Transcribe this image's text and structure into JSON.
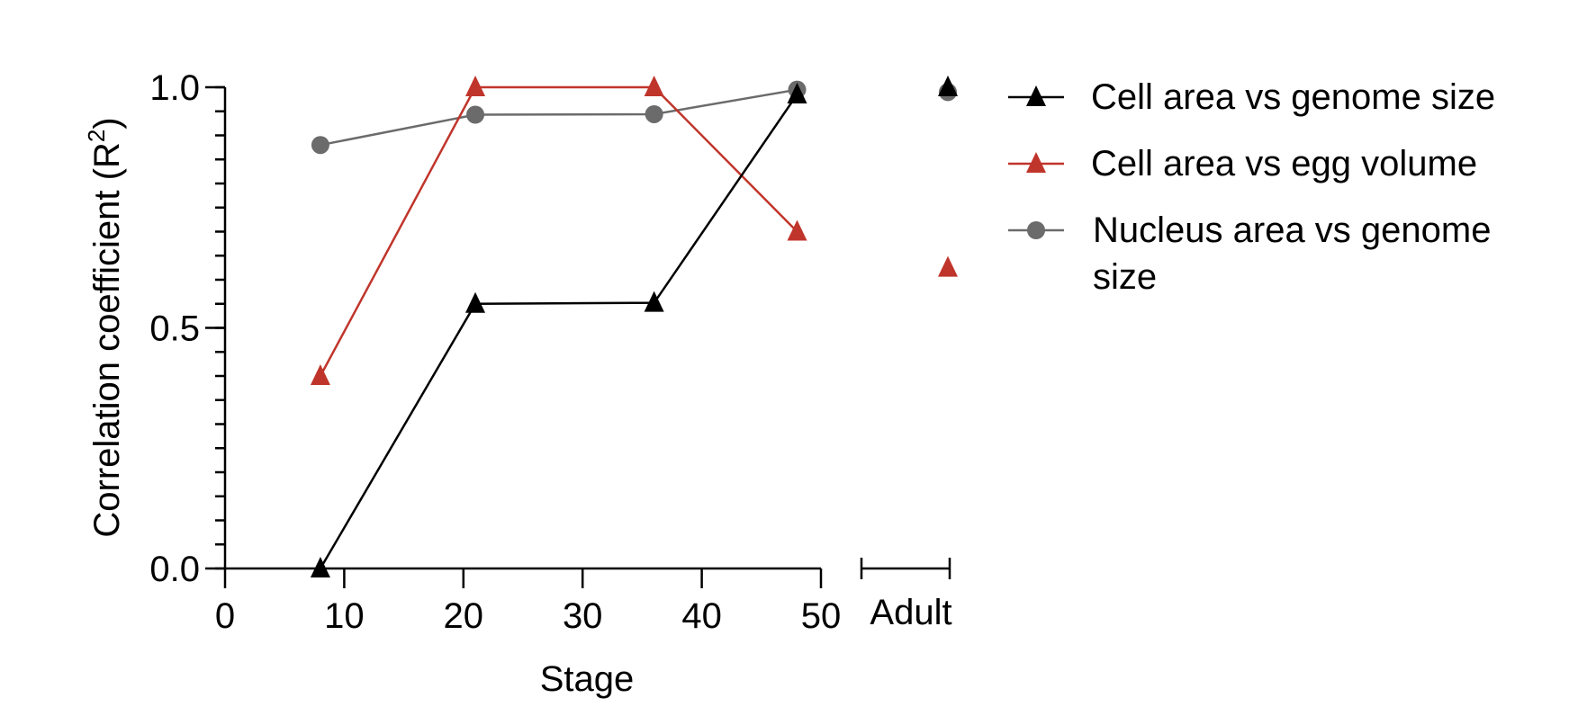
{
  "chart_data": {
    "type": "line",
    "xlabel": "Stage",
    "ylabel": "Correlation coefficient (R²)",
    "ylabel_main": "Correlation coefficient (R",
    "ylabel_sup": "2",
    "ylabel_close": ")",
    "xlim": [
      0,
      50
    ],
    "ylim": [
      0,
      1
    ],
    "x_ticks": [
      0,
      10,
      20,
      30,
      40,
      50
    ],
    "x_tick_labels": [
      "0",
      "10",
      "20",
      "30",
      "40",
      "50"
    ],
    "y_ticks": [
      0,
      0.5,
      1
    ],
    "y_tick_labels": [
      "0.0",
      "0.5",
      "1.0"
    ],
    "y_minor_step": 0.05,
    "adult_label": "Adult",
    "grid": false,
    "legend_position": "right",
    "series": [
      {
        "name": "Cell area vs genome size",
        "color": "#000000",
        "marker": "triangle",
        "x": [
          8,
          21,
          36,
          48
        ],
        "y": [
          0.0,
          0.55,
          0.552,
          0.985
        ],
        "adult": 1.0
      },
      {
        "name": "Cell area vs egg volume",
        "color": "#c0352b",
        "marker": "triangle",
        "x": [
          8,
          21,
          36,
          48
        ],
        "y": [
          0.4,
          1.0,
          1.0,
          0.7
        ],
        "adult": 0.625
      },
      {
        "name": "Nucleus area vs genome size",
        "name_lines": [
          "Nucleus area vs genome",
          "size"
        ],
        "color": "#6b6b6b",
        "marker": "circle",
        "x": [
          8,
          21,
          36,
          48
        ],
        "y": [
          0.88,
          0.943,
          0.944,
          0.995
        ],
        "adult": 0.99
      }
    ]
  }
}
